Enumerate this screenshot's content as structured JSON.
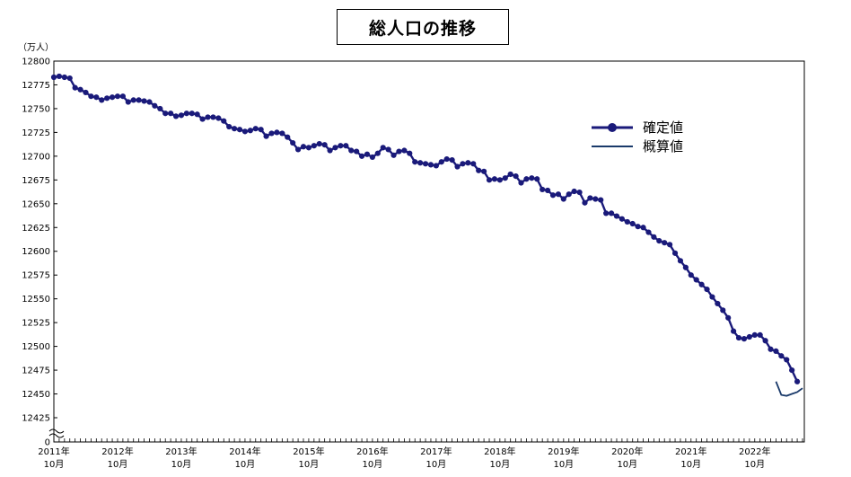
{
  "chart_data": {
    "type": "line",
    "title": "総人口の推移",
    "y_unit_label": "（万人）",
    "ylim": [
      12425,
      12800
    ],
    "y_ticks": [
      12425,
      12450,
      12475,
      12500,
      12525,
      12550,
      12575,
      12600,
      12625,
      12650,
      12675,
      12700,
      12725,
      12750,
      12775,
      12800
    ],
    "y_bottom_label": "0",
    "x_ticks": [
      {
        "year": "2011年",
        "month": "10月",
        "index": 0
      },
      {
        "year": "2012年",
        "month": "10月",
        "index": 12
      },
      {
        "year": "2013年",
        "month": "10月",
        "index": 24
      },
      {
        "year": "2014年",
        "month": "10月",
        "index": 36
      },
      {
        "year": "2015年",
        "month": "10月",
        "index": 48
      },
      {
        "year": "2016年",
        "month": "10月",
        "index": 60
      },
      {
        "year": "2017年",
        "month": "10月",
        "index": 72
      },
      {
        "year": "2018年",
        "month": "10月",
        "index": 84
      },
      {
        "year": "2019年",
        "month": "10月",
        "index": 96
      },
      {
        "year": "2020年",
        "month": "10月",
        "index": 108
      },
      {
        "year": "2021年",
        "month": "10月",
        "index": 120
      },
      {
        "year": "2022年",
        "month": "10月",
        "index": 132
      }
    ],
    "x_count": 142,
    "legend_position": "right",
    "series": [
      {
        "name": "確定値",
        "color": "#1a1a7a",
        "marker": "circle",
        "start_index": 0,
        "values": [
          12783,
          12784,
          12783,
          12782,
          12772,
          12770,
          12767,
          12763,
          12762,
          12759,
          12761,
          12762,
          12763,
          12763,
          12757,
          12759,
          12759,
          12758,
          12757,
          12753,
          12750,
          12745,
          12745,
          12742,
          12743,
          12745,
          12745,
          12744,
          12739,
          12741,
          12741,
          12740,
          12737,
          12731,
          12729,
          12728,
          12726,
          12727,
          12729,
          12728,
          12721,
          12724,
          12725,
          12724,
          12720,
          12714,
          12707,
          12710,
          12709,
          12711,
          12713,
          12712,
          12706,
          12709,
          12711,
          12711,
          12706,
          12705,
          12700,
          12702,
          12699,
          12703,
          12709,
          12707,
          12701,
          12705,
          12706,
          12703,
          12694,
          12693,
          12692,
          12691,
          12690,
          12694,
          12697,
          12696,
          12689,
          12692,
          12693,
          12692,
          12685,
          12684,
          12675,
          12676,
          12675,
          12677,
          12681,
          12679,
          12672,
          12676,
          12677,
          12676,
          12665,
          12664,
          12659,
          12660,
          12655,
          12660,
          12663,
          12662,
          12651,
          12656,
          12655,
          12654,
          12640,
          12640,
          12637,
          12634,
          12631,
          12629,
          12626,
          12625,
          12620,
          12615,
          12611,
          12609,
          12607,
          12598,
          12590,
          12583,
          12575,
          12570,
          12565,
          12560,
          12552,
          12545,
          12538,
          12530,
          12516,
          12509,
          12508,
          12510,
          12512,
          12512,
          12506,
          12497,
          12495,
          12490,
          12486,
          12475,
          12463
        ]
      },
      {
        "name": "概算値",
        "color": "#1a3a6a",
        "marker": "none",
        "start_index": 136,
        "values": [
          12463,
          12449,
          12448,
          12450,
          12452,
          12456
        ]
      }
    ]
  }
}
